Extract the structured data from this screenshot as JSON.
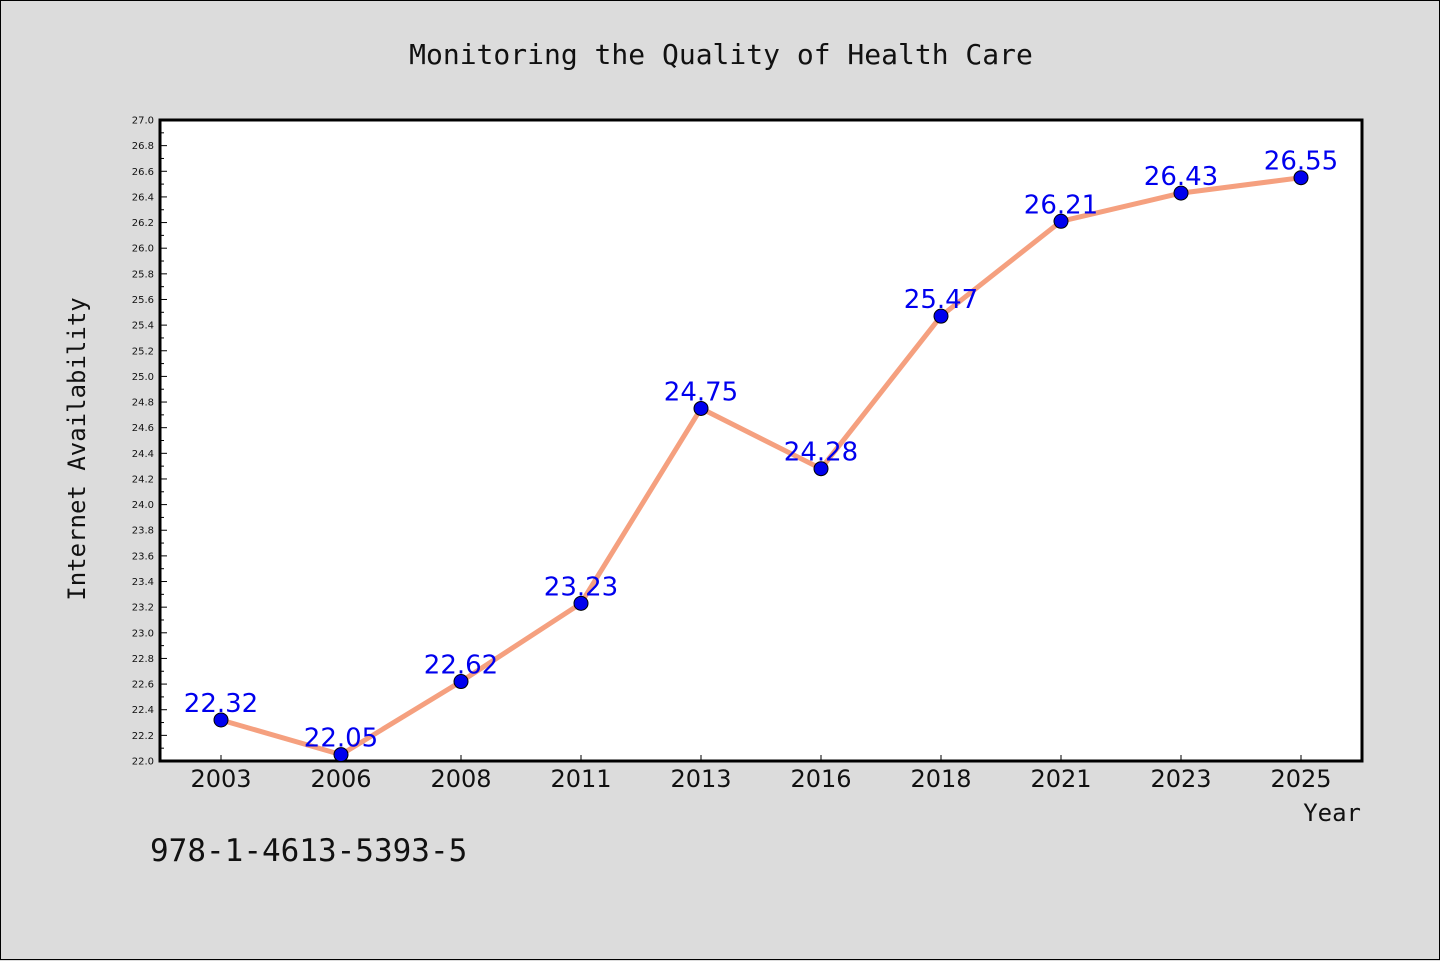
{
  "isbn_text": "978-1-4613-5393-5",
  "colors": {
    "background": "#dcdcdc",
    "plot_background": "#ffffff",
    "line": "#f5a07f",
    "marker": "#0000ee",
    "data_label": "#0000ee",
    "axis": "#000000"
  },
  "chart_data": {
    "type": "line",
    "title": "Monitoring the Quality of Health Care",
    "xlabel": "Year",
    "ylabel": "Internet Availability",
    "categories": [
      "2003",
      "2006",
      "2008",
      "2011",
      "2013",
      "2016",
      "2018",
      "2021",
      "2023",
      "2025"
    ],
    "series": [
      {
        "values": [
          22.32,
          22.05,
          22.62,
          23.23,
          24.75,
          24.28,
          25.47,
          26.21,
          26.43,
          26.55
        ],
        "data_labels": [
          "22.32",
          "22.05",
          "22.62",
          "23.23",
          "24.75",
          "24.28",
          "25.47",
          "26.21",
          "26.43",
          "26.55"
        ]
      }
    ],
    "ylim": [
      22.0,
      27.0
    ],
    "yticks": [
      "22.0",
      "22.2",
      "22.4",
      "22.6",
      "22.8",
      "23.0",
      "23.2",
      "23.4",
      "23.6",
      "23.8",
      "24.0",
      "24.2",
      "24.4",
      "24.6",
      "24.8",
      "25.0",
      "25.2",
      "25.4",
      "25.6",
      "25.8",
      "26.0",
      "26.2",
      "26.4",
      "26.6",
      "26.8",
      "27.0"
    ],
    "grid": false,
    "legend": "none",
    "markers": "filled circles",
    "data_labels_shown": true
  }
}
